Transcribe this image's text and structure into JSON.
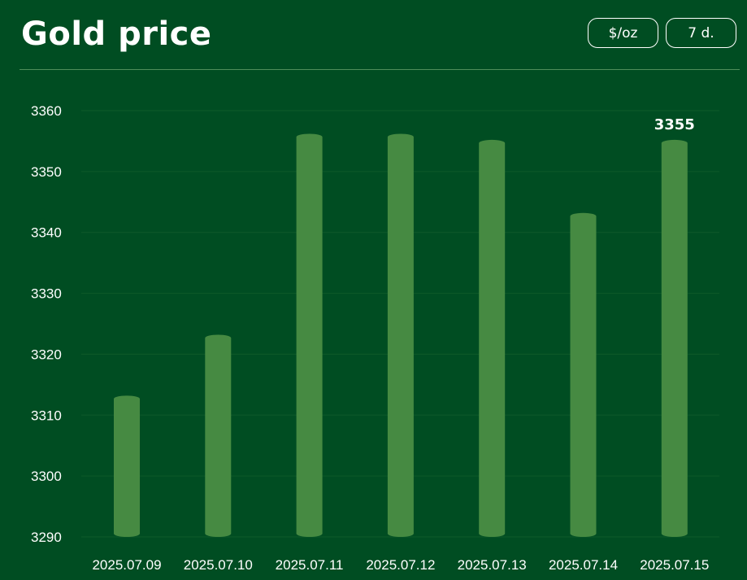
{
  "header": {
    "title": "Gold price",
    "unit_button": "$/oz",
    "range_button": "7 d."
  },
  "colors": {
    "background": "#004d22",
    "bar": "#468a42",
    "grid": "#0e5a2a"
  },
  "chart_data": {
    "type": "bar",
    "categories": [
      "2025.07.09",
      "2025.07.10",
      "2025.07.11",
      "2025.07.12",
      "2025.07.13",
      "2025.07.14",
      "2025.07.15"
    ],
    "values": [
      3312,
      3322,
      3355,
      3355,
      3354,
      3342,
      3354
    ],
    "highlight_label": "3355",
    "title": "Gold price",
    "xlabel": "",
    "ylabel": "",
    "ylim": [
      3290,
      3360
    ],
    "yticks": [
      3290,
      3300,
      3310,
      3320,
      3330,
      3340,
      3350,
      3360
    ],
    "grid": true
  }
}
